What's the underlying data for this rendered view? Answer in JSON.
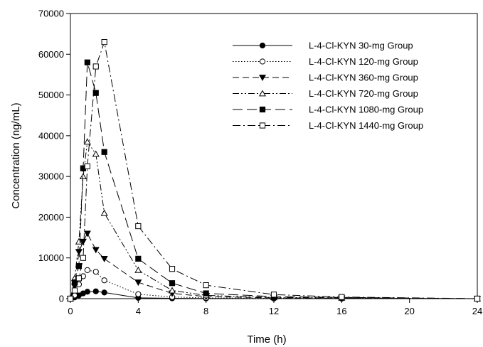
{
  "chart_data": {
    "type": "line",
    "xlabel": "Time (h)",
    "ylabel": "Concentration (ng/mL)",
    "xlim": [
      0,
      24
    ],
    "ylim": [
      0,
      70000
    ],
    "xticks": [
      "0",
      "4",
      "8",
      "12",
      "16",
      "20",
      "24"
    ],
    "yticks": [
      "0",
      "10000",
      "20000",
      "30000",
      "40000",
      "50000",
      "60000",
      "70000"
    ],
    "grid": false,
    "legend_position": "top-right",
    "series": [
      {
        "name": "L-4-Cl-KYN 30-mg Group",
        "line_style": "solid",
        "marker": "filled-circle",
        "x": [
          0,
          0.25,
          0.5,
          0.75,
          1,
          1.5,
          2,
          4,
          6,
          8,
          12,
          16,
          24
        ],
        "y": [
          0,
          300,
          800,
          1300,
          1700,
          1800,
          1500,
          200,
          80,
          40,
          20,
          10,
          0
        ]
      },
      {
        "name": "L-4-Cl-KYN 120-mg Group",
        "line_style": "dotted",
        "marker": "open-circle",
        "x": [
          0,
          0.25,
          0.5,
          0.75,
          1,
          1.5,
          2,
          4,
          6,
          8,
          12,
          16,
          24
        ],
        "y": [
          0,
          800,
          3500,
          5500,
          7000,
          6600,
          4500,
          1100,
          400,
          200,
          100,
          50,
          0
        ]
      },
      {
        "name": "L-4-Cl-KYN 360-mg Group",
        "line_style": "dashed",
        "marker": "filled-triangle-down",
        "x": [
          0,
          0.25,
          0.5,
          0.75,
          1,
          1.5,
          2,
          4,
          6,
          8,
          12,
          16,
          24
        ],
        "y": [
          0,
          3000,
          11500,
          14000,
          16000,
          12000,
          9800,
          4000,
          1300,
          500,
          200,
          100,
          0
        ]
      },
      {
        "name": "L-4-Cl-KYN 720-mg Group",
        "line_style": "dash-dot-dot",
        "marker": "open-triangle-up",
        "x": [
          0,
          0.25,
          0.5,
          0.75,
          1,
          1.5,
          2,
          4,
          6,
          8,
          12,
          16,
          24
        ],
        "y": [
          0,
          5000,
          14000,
          30000,
          38500,
          35500,
          21000,
          7000,
          2000,
          800,
          300,
          200,
          0
        ]
      },
      {
        "name": "L-4-Cl-KYN 1080-mg Group",
        "line_style": "long-dash",
        "marker": "filled-square",
        "x": [
          0,
          0.25,
          0.5,
          0.75,
          1,
          1.5,
          2,
          4,
          6,
          8,
          12,
          16,
          24
        ],
        "y": [
          0,
          4000,
          8000,
          32000,
          58000,
          50500,
          36000,
          9800,
          3800,
          1300,
          500,
          300,
          0
        ]
      },
      {
        "name": "L-4-Cl-KYN 1440-mg Group",
        "line_style": "dash-dot",
        "marker": "open-square",
        "x": [
          0,
          0.25,
          0.5,
          0.75,
          1,
          1.5,
          2,
          4,
          6,
          8,
          12,
          16,
          24
        ],
        "y": [
          0,
          2000,
          5000,
          10000,
          32500,
          57000,
          63000,
          17800,
          7300,
          3300,
          1000,
          400,
          0
        ]
      }
    ]
  }
}
